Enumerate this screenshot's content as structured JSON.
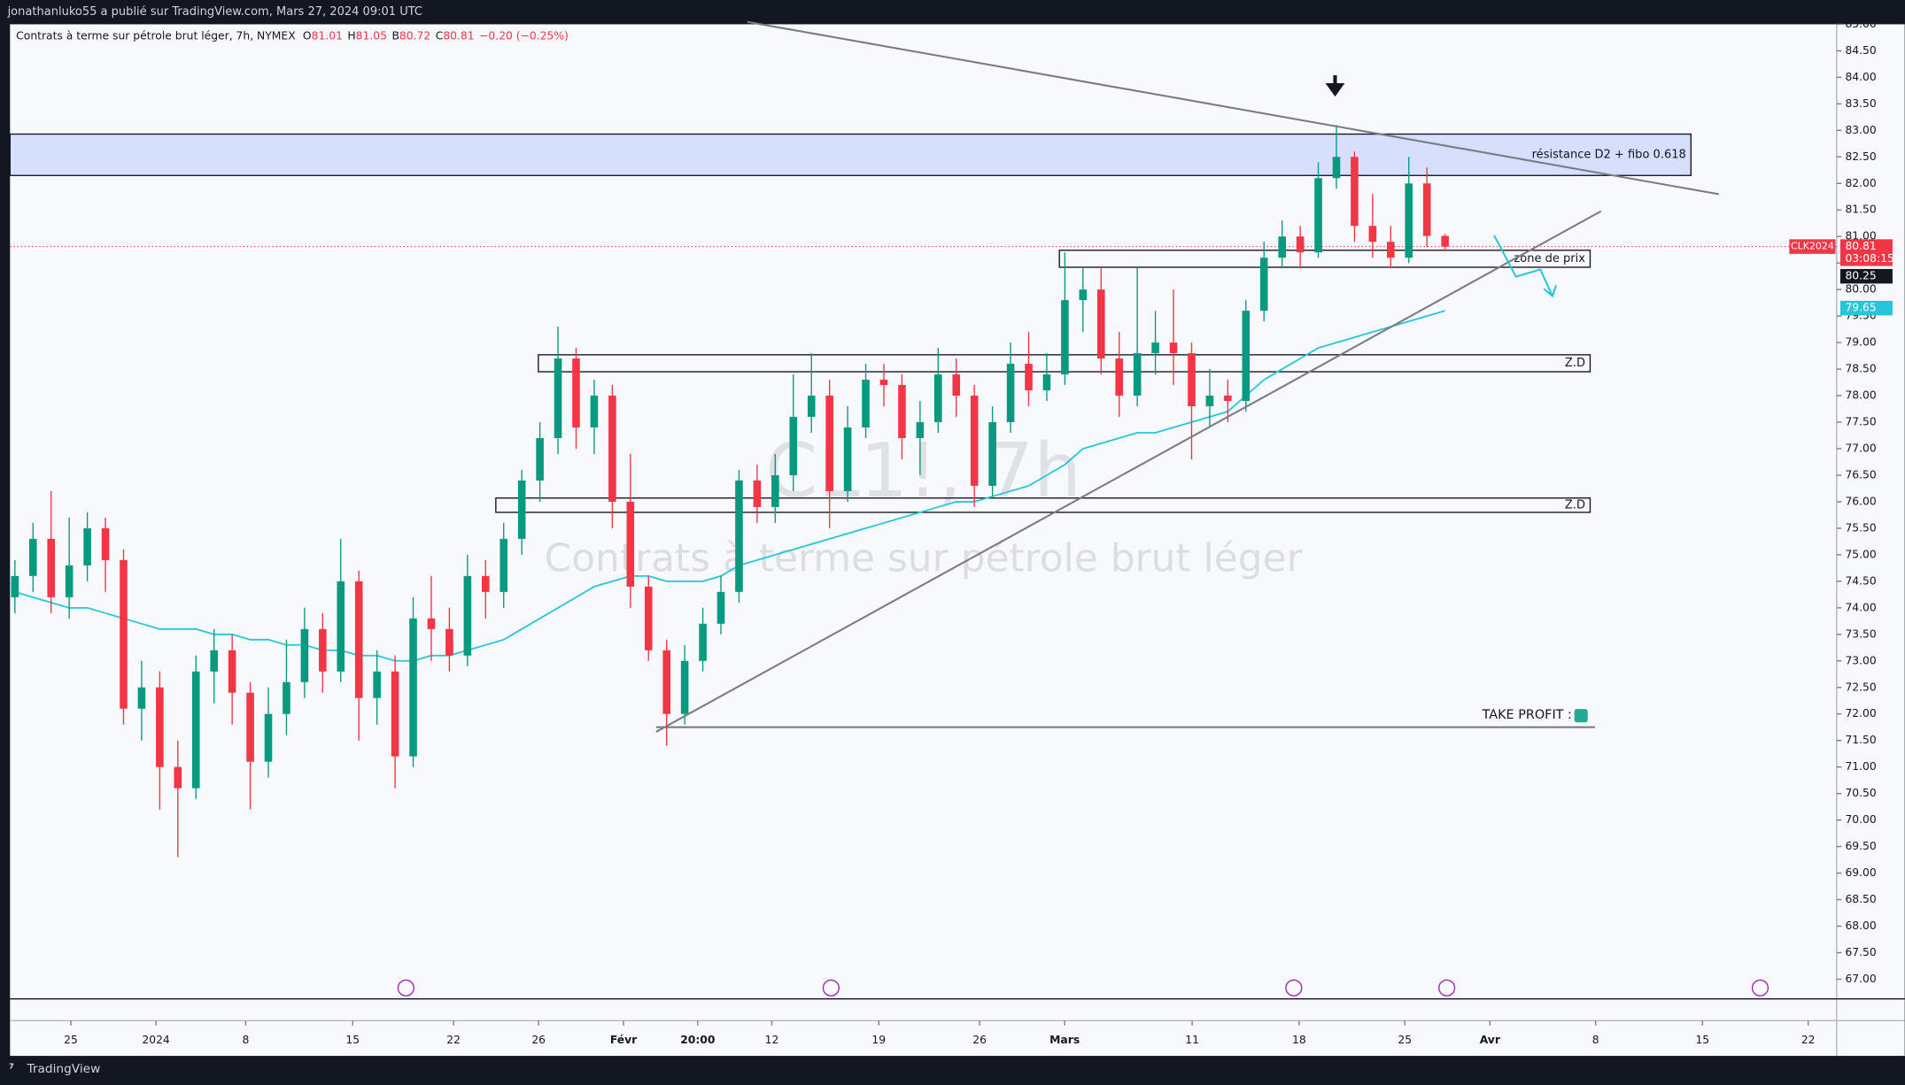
{
  "header": {
    "publisher": "jonathanluko55 a publié sur TradingView.com, Mars 27, 2024 09:01 UTC",
    "brand": "TradingView"
  },
  "chart_data": {
    "type": "candlestick",
    "symbol_line": "Contrats à terme sur pétrole brut léger, 7h, NYMEX",
    "ohlc": [
      {
        "key": "O",
        "value": "81.01"
      },
      {
        "key": "H",
        "value": "81.05"
      },
      {
        "key": "B",
        "value": "80.72"
      },
      {
        "key": "C",
        "value": "80.81"
      }
    ],
    "change": "−0.20 (−0.25%)",
    "watermark": [
      "CL1!, 7h",
      "Contrats à terme sur pétrole brut léger"
    ],
    "up_color": "#089981",
    "down_color": "#f23645",
    "candles": {
      "open": [
        74.2,
        74.6,
        75.3,
        74.2,
        74.8,
        75.5,
        74.9,
        72.1,
        72.5,
        71.0,
        70.6,
        72.8,
        73.2,
        72.4,
        71.1,
        72.0,
        72.6,
        73.6,
        72.8,
        74.5,
        72.3,
        72.8,
        71.2,
        73.8,
        73.6,
        73.1,
        74.6,
        74.3,
        75.3,
        76.4,
        77.2,
        78.7,
        77.4,
        78.0,
        76.0,
        74.4,
        73.2,
        72.0,
        73.0,
        73.7,
        74.3,
        76.4,
        75.9,
        76.5,
        77.6,
        78.0,
        76.2,
        77.4,
        78.3,
        78.2,
        77.2,
        77.5,
        78.4,
        78.0,
        76.3,
        77.5,
        78.6,
        78.1,
        78.4,
        79.8,
        80.0,
        78.7,
        78.0,
        78.8,
        79.0,
        78.8,
        77.8,
        78.0,
        77.9,
        79.6,
        80.6,
        81.0,
        80.7,
        82.1,
        82.5,
        81.2,
        80.9,
        80.6,
        82.0,
        81.01
      ],
      "high": [
        74.9,
        75.6,
        76.2,
        75.7,
        75.8,
        75.7,
        75.1,
        73.0,
        72.8,
        71.5,
        73.1,
        73.6,
        73.5,
        72.6,
        72.5,
        73.4,
        74.0,
        73.9,
        75.3,
        74.7,
        73.2,
        73.1,
        74.2,
        74.6,
        74.0,
        75.0,
        74.9,
        75.6,
        76.6,
        77.5,
        79.3,
        78.9,
        78.3,
        78.2,
        76.9,
        74.6,
        73.4,
        73.3,
        74.0,
        74.6,
        76.6,
        76.7,
        76.9,
        78.4,
        78.8,
        78.3,
        77.8,
        78.6,
        78.6,
        78.4,
        77.9,
        78.9,
        78.7,
        78.2,
        77.8,
        79.0,
        79.2,
        78.8,
        80.7,
        80.4,
        80.4,
        79.2,
        80.4,
        79.6,
        80.0,
        79.0,
        78.5,
        78.3,
        79.8,
        80.9,
        81.3,
        81.2,
        82.4,
        83.1,
        82.6,
        81.8,
        81.2,
        82.5,
        82.3,
        81.05
      ],
      "low": [
        73.9,
        74.3,
        73.9,
        73.8,
        74.5,
        74.3,
        71.8,
        71.5,
        70.2,
        69.3,
        70.4,
        72.2,
        71.8,
        70.2,
        70.8,
        71.6,
        72.3,
        72.4,
        72.6,
        71.5,
        71.8,
        70.6,
        71.0,
        73.0,
        72.8,
        72.9,
        73.8,
        74.0,
        75.0,
        76.0,
        76.9,
        77.0,
        76.9,
        75.5,
        74.0,
        73.0,
        71.4,
        71.8,
        72.8,
        73.5,
        74.1,
        75.6,
        75.6,
        76.2,
        77.3,
        75.5,
        76.0,
        77.2,
        77.8,
        76.8,
        76.5,
        77.3,
        77.6,
        75.9,
        76.1,
        77.3,
        77.8,
        77.9,
        78.2,
        79.2,
        78.4,
        77.6,
        77.8,
        78.4,
        78.2,
        76.8,
        77.4,
        77.5,
        77.7,
        79.4,
        80.4,
        80.4,
        80.6,
        81.9,
        80.9,
        80.6,
        80.4,
        80.5,
        80.8,
        80.72
      ],
      "close": [
        74.6,
        75.3,
        74.2,
        74.8,
        75.5,
        74.9,
        72.1,
        72.5,
        71.0,
        70.6,
        72.8,
        73.2,
        72.4,
        71.1,
        72.0,
        72.6,
        73.6,
        72.8,
        74.5,
        72.3,
        72.8,
        71.2,
        73.8,
        73.6,
        73.1,
        74.6,
        74.3,
        75.3,
        76.4,
        77.2,
        78.7,
        77.4,
        78.0,
        76.0,
        74.4,
        73.2,
        72.0,
        73.0,
        73.7,
        74.3,
        76.4,
        75.9,
        76.5,
        77.6,
        78.0,
        76.2,
        77.4,
        78.3,
        78.2,
        77.2,
        77.5,
        78.4,
        78.0,
        76.3,
        77.5,
        78.6,
        78.1,
        78.4,
        79.8,
        80.0,
        78.7,
        78.0,
        78.8,
        79.0,
        78.8,
        77.8,
        78.0,
        77.9,
        79.6,
        80.6,
        81.0,
        80.7,
        82.1,
        82.5,
        81.2,
        80.9,
        80.6,
        82.0,
        81.01,
        80.81
      ]
    },
    "moving_average": {
      "color": "#26c6da",
      "values": [
        74.3,
        74.2,
        74.1,
        74.0,
        74.0,
        73.9,
        73.8,
        73.7,
        73.6,
        73.6,
        73.6,
        73.5,
        73.5,
        73.4,
        73.4,
        73.3,
        73.3,
        73.2,
        73.2,
        73.1,
        73.1,
        73.0,
        73.0,
        73.1,
        73.1,
        73.2,
        73.3,
        73.4,
        73.6,
        73.8,
        74.0,
        74.2,
        74.4,
        74.5,
        74.6,
        74.6,
        74.5,
        74.5,
        74.5,
        74.6,
        74.8,
        74.9,
        75.0,
        75.1,
        75.2,
        75.3,
        75.4,
        75.5,
        75.6,
        75.7,
        75.8,
        75.9,
        76.0,
        76.0,
        76.1,
        76.2,
        76.3,
        76.5,
        76.7,
        77.0,
        77.1,
        77.2,
        77.3,
        77.3,
        77.4,
        77.5,
        77.6,
        77.7,
        78.0,
        78.3,
        78.5,
        78.7,
        78.9,
        79.0,
        79.1,
        79.2,
        79.3,
        79.4,
        79.5,
        79.6
      ]
    },
    "xlim": [
      -0.27,
      100.5
    ],
    "xticks": [
      {
        "value": 3.09,
        "label": "25"
      },
      {
        "value": 7.79,
        "label": "2024"
      },
      {
        "value": 12.75,
        "label": "8"
      },
      {
        "value": 18.66,
        "label": "15"
      },
      {
        "value": 24.23,
        "label": "22"
      },
      {
        "value": 28.93,
        "label": "26"
      },
      {
        "value": 33.62,
        "label": "Févr"
      },
      {
        "value": 37.72,
        "label": "20:00"
      },
      {
        "value": 41.81,
        "label": "12"
      },
      {
        "value": 47.72,
        "label": "19"
      },
      {
        "value": 53.29,
        "label": "26"
      },
      {
        "value": 57.99,
        "label": "Mars"
      },
      {
        "value": 65.03,
        "label": "11"
      },
      {
        "value": 70.94,
        "label": "18"
      },
      {
        "value": 76.78,
        "label": "25"
      },
      {
        "value": 81.48,
        "label": "Avr"
      },
      {
        "value": 87.32,
        "label": "8"
      },
      {
        "value": 93.22,
        "label": "15"
      },
      {
        "value": 99.06,
        "label": "22"
      }
    ],
    "ylim": [
      66.63,
      85.0
    ],
    "yticks": [
      {
        "value": 67,
        "label": "67.00"
      },
      {
        "value": 67.5,
        "label": "67.50"
      },
      {
        "value": 68,
        "label": "68.00"
      },
      {
        "value": 68.5,
        "label": "68.50"
      },
      {
        "value": 69,
        "label": "69.00"
      },
      {
        "value": 69.5,
        "label": "69.50"
      },
      {
        "value": 70,
        "label": "70.00"
      },
      {
        "value": 70.5,
        "label": "70.50"
      },
      {
        "value": 71,
        "label": "71.00"
      },
      {
        "value": 71.5,
        "label": "71.50"
      },
      {
        "value": 72,
        "label": "72.00"
      },
      {
        "value": 72.5,
        "label": "72.50"
      },
      {
        "value": 73,
        "label": "73.00"
      },
      {
        "value": 73.5,
        "label": "73.50"
      },
      {
        "value": 74,
        "label": "74.00"
      },
      {
        "value": 74.5,
        "label": "74.50"
      },
      {
        "value": 75,
        "label": "75.00"
      },
      {
        "value": 75.5,
        "label": "75.50"
      },
      {
        "value": 76,
        "label": "76.00"
      },
      {
        "value": 76.5,
        "label": "76.50"
      },
      {
        "value": 77,
        "label": "77.00"
      },
      {
        "value": 77.5,
        "label": "77.50"
      },
      {
        "value": 78,
        "label": "78.00"
      },
      {
        "value": 78.5,
        "label": "78.50"
      },
      {
        "value": 79,
        "label": "79.00"
      },
      {
        "value": 79.5,
        "label": "79.50"
      },
      {
        "value": 80,
        "label": "80.00"
      },
      {
        "value": 80.5,
        "label": "80.50"
      },
      {
        "value": 81,
        "label": "81.00"
      },
      {
        "value": 81.5,
        "label": "81.50"
      },
      {
        "value": 82,
        "label": "82.00"
      },
      {
        "value": 82.5,
        "label": "82.50"
      },
      {
        "value": 83,
        "label": "83.00"
      },
      {
        "value": 83.5,
        "label": "83.50"
      },
      {
        "value": 84,
        "label": "84.00"
      },
      {
        "value": 84.5,
        "label": "84.50"
      },
      {
        "value": 85,
        "label": "85.00"
      }
    ],
    "zones": [
      {
        "label": "résistance D2 + fibo 0.618",
        "low": 82.15,
        "high": 82.93,
        "fill": "#d1dcfb"
      },
      {
        "label": "zone de prix",
        "low": 80.42,
        "high": 80.74,
        "fill": "none"
      },
      {
        "label": "Z.D",
        "low": 78.45,
        "high": 78.77,
        "fill": "none"
      },
      {
        "label": "Z.D",
        "low": 75.8,
        "high": 76.07,
        "fill": "none"
      }
    ],
    "take_profit": {
      "label": "TAKE PROFIT :",
      "value": 71.75
    },
    "price_labels": [
      {
        "text": "CLK2024",
        "value": 80.81,
        "color": "#f23645"
      },
      {
        "value": 80.81,
        "color": "#f23645",
        "countdown": "03:08:15"
      },
      {
        "value": 80.25,
        "color": "#131722"
      },
      {
        "value": 79.65,
        "color": "#26c6da"
      }
    ]
  }
}
